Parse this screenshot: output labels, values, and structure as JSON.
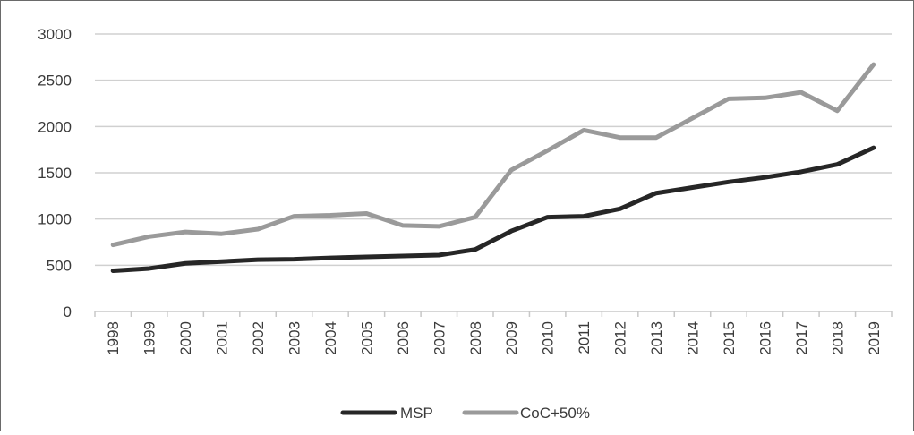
{
  "chart_data": {
    "type": "line",
    "title": "",
    "xlabel": "",
    "ylabel": "",
    "ylim": [
      0,
      3000
    ],
    "yticks": [
      0,
      500,
      1000,
      1500,
      2000,
      2500,
      3000
    ],
    "grid": "horizontal",
    "legend_position": "bottom",
    "categories": [
      "1998",
      "1999",
      "2000",
      "2001",
      "2002",
      "2003",
      "2004",
      "2005",
      "2006",
      "2007",
      "2008",
      "2009",
      "2010",
      "2011",
      "2012",
      "2013",
      "2014",
      "2015",
      "2016",
      "2017",
      "2018",
      "2019"
    ],
    "series": [
      {
        "name": "MSP",
        "color": "#262626",
        "values": [
          440,
          465,
          520,
          540,
          560,
          565,
          580,
          590,
          600,
          610,
          670,
          870,
          1020,
          1030,
          1110,
          1280,
          1340,
          1400,
          1450,
          1510,
          1590,
          1770
        ]
      },
      {
        "name": "CoC+50%",
        "color": "#9a9a9a",
        "values": [
          720,
          810,
          860,
          840,
          890,
          1030,
          1040,
          1060,
          930,
          920,
          1020,
          1530,
          1740,
          1960,
          1880,
          1880,
          2090,
          2300,
          2310,
          2370,
          2170,
          2670
        ]
      }
    ]
  }
}
